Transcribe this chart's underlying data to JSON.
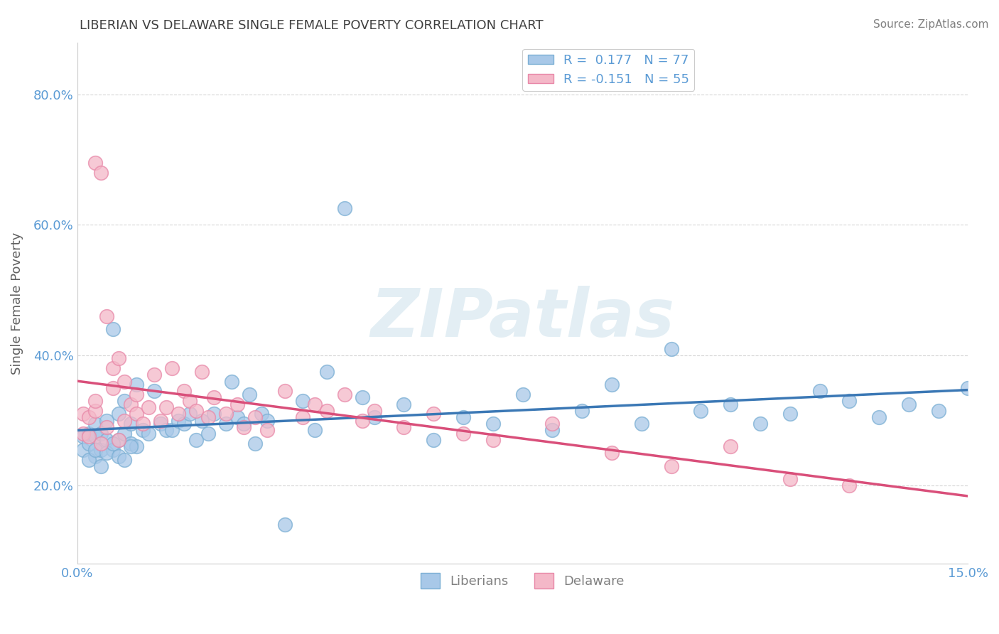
{
  "title": "LIBERIAN VS DELAWARE SINGLE FEMALE POVERTY CORRELATION CHART",
  "source_text": "Source: ZipAtlas.com",
  "xlabel": "",
  "ylabel": "Single Female Poverty",
  "xlim": [
    0.0,
    0.15
  ],
  "ylim": [
    0.08,
    0.88
  ],
  "xtick_positions": [
    0.0,
    0.025,
    0.05,
    0.075,
    0.1,
    0.125,
    0.15
  ],
  "xtick_labels": [
    "0.0%",
    "",
    "",
    "",
    "",
    "",
    "15.0%"
  ],
  "ytick_positions": [
    0.2,
    0.4,
    0.6,
    0.8
  ],
  "ytick_labels": [
    "20.0%",
    "40.0%",
    "60.0%",
    "80.0%"
  ],
  "liberian_R": 0.177,
  "liberian_N": 77,
  "delaware_R": -0.151,
  "delaware_N": 55,
  "blue_color": "#a8c8e8",
  "blue_edge_color": "#7bafd4",
  "pink_color": "#f4b8c8",
  "pink_edge_color": "#e888a8",
  "blue_line_color": "#3b78b5",
  "pink_line_color": "#d94f7a",
  "watermark": "ZIPatlas",
  "tick_color": "#5b9bd5",
  "grid_color": "#cccccc",
  "title_color": "#404040",
  "ylabel_color": "#606060",
  "blue_x": [
    0.001,
    0.001,
    0.002,
    0.002,
    0.003,
    0.003,
    0.003,
    0.004,
    0.004,
    0.005,
    0.005,
    0.006,
    0.006,
    0.007,
    0.007,
    0.008,
    0.008,
    0.009,
    0.009,
    0.01,
    0.01,
    0.011,
    0.012,
    0.013,
    0.014,
    0.015,
    0.016,
    0.017,
    0.018,
    0.019,
    0.02,
    0.021,
    0.022,
    0.023,
    0.025,
    0.026,
    0.027,
    0.028,
    0.029,
    0.03,
    0.031,
    0.032,
    0.035,
    0.038,
    0.04,
    0.042,
    0.045,
    0.048,
    0.05,
    0.055,
    0.06,
    0.065,
    0.07,
    0.075,
    0.08,
    0.085,
    0.09,
    0.095,
    0.1,
    0.105,
    0.11,
    0.115,
    0.12,
    0.125,
    0.13,
    0.135,
    0.14,
    0.145,
    0.15,
    0.002,
    0.003,
    0.004,
    0.005,
    0.006,
    0.007,
    0.008,
    0.009
  ],
  "blue_y": [
    0.275,
    0.255,
    0.265,
    0.28,
    0.245,
    0.275,
    0.295,
    0.255,
    0.28,
    0.27,
    0.3,
    0.255,
    0.44,
    0.27,
    0.31,
    0.28,
    0.33,
    0.265,
    0.295,
    0.26,
    0.355,
    0.285,
    0.28,
    0.345,
    0.295,
    0.285,
    0.285,
    0.3,
    0.295,
    0.31,
    0.27,
    0.3,
    0.28,
    0.31,
    0.295,
    0.36,
    0.305,
    0.295,
    0.34,
    0.265,
    0.31,
    0.3,
    0.14,
    0.33,
    0.285,
    0.375,
    0.625,
    0.335,
    0.305,
    0.325,
    0.27,
    0.305,
    0.295,
    0.34,
    0.285,
    0.315,
    0.355,
    0.295,
    0.41,
    0.315,
    0.325,
    0.295,
    0.31,
    0.345,
    0.33,
    0.305,
    0.325,
    0.315,
    0.35,
    0.24,
    0.255,
    0.23,
    0.25,
    0.265,
    0.245,
    0.24,
    0.26
  ],
  "pink_x": [
    0.001,
    0.001,
    0.002,
    0.002,
    0.003,
    0.003,
    0.004,
    0.004,
    0.005,
    0.005,
    0.006,
    0.006,
    0.007,
    0.007,
    0.008,
    0.008,
    0.009,
    0.01,
    0.01,
    0.011,
    0.012,
    0.013,
    0.014,
    0.015,
    0.016,
    0.017,
    0.018,
    0.019,
    0.02,
    0.021,
    0.022,
    0.023,
    0.025,
    0.027,
    0.028,
    0.03,
    0.032,
    0.035,
    0.038,
    0.04,
    0.042,
    0.045,
    0.048,
    0.05,
    0.055,
    0.06,
    0.065,
    0.07,
    0.08,
    0.09,
    0.1,
    0.11,
    0.12,
    0.13,
    0.003
  ],
  "pink_y": [
    0.31,
    0.28,
    0.275,
    0.305,
    0.315,
    0.695,
    0.265,
    0.68,
    0.29,
    0.46,
    0.35,
    0.38,
    0.27,
    0.395,
    0.3,
    0.36,
    0.325,
    0.31,
    0.34,
    0.295,
    0.32,
    0.37,
    0.3,
    0.32,
    0.38,
    0.31,
    0.345,
    0.33,
    0.315,
    0.375,
    0.305,
    0.335,
    0.31,
    0.325,
    0.29,
    0.305,
    0.285,
    0.345,
    0.305,
    0.325,
    0.315,
    0.34,
    0.3,
    0.315,
    0.29,
    0.31,
    0.28,
    0.27,
    0.295,
    0.25,
    0.23,
    0.26,
    0.21,
    0.2,
    0.33
  ]
}
